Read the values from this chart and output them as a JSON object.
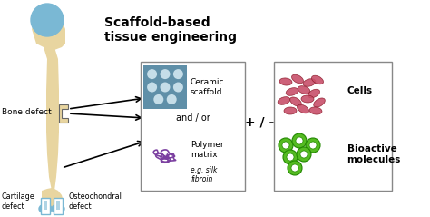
{
  "bone_color": "#e8d5a0",
  "blue_color": "#7ab8d4",
  "scaffold_box_color": "#5f8fa8",
  "ceramic_dots_color": "#c5dde8",
  "polymer_color": "#7b3fa0",
  "cells_color": "#c8506a",
  "cells_edge_color": "#8B1a2a",
  "bioactive_color": "#55bb22",
  "bioactive_edge_color": "#228800",
  "box_edge_color": "#888888",
  "title_line1": "Scaffold-based",
  "title_line2": "tissue engineering",
  "label_bone_defect": "Bone defect",
  "label_cartilage": "Cartilage\ndefect",
  "label_osteochondral": "Osteochondral\ndefect",
  "label_ceramic": "Ceramic\nscaffold",
  "label_andor": "and / or",
  "label_polymer": "Polymer\nmatrix",
  "label_polymer_sub": "e.g. silk\nfibroin",
  "label_cells": "Cells",
  "label_bioactive": "Bioactive\nmolecules",
  "label_plusminus": "+ / -"
}
